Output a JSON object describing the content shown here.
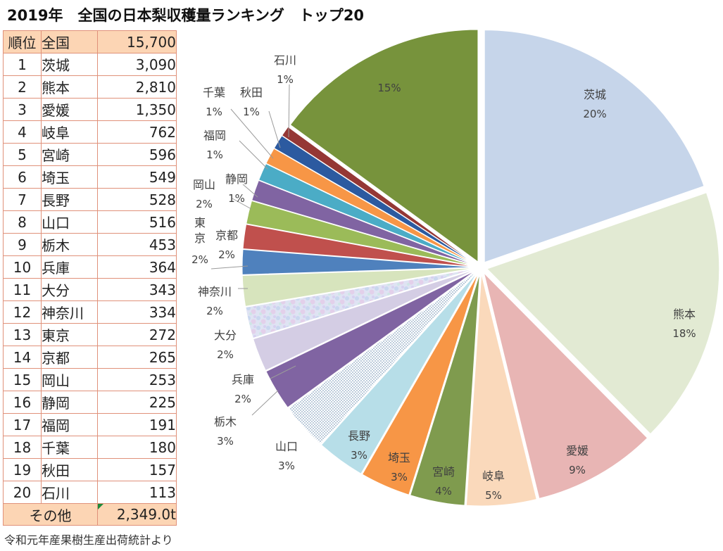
{
  "title": "2019年　全国の日本梨収穫量ランキング　トップ20",
  "source": "令和元年産果樹生産出荷統計より",
  "table": {
    "header": {
      "rank": "順位",
      "name": "全国",
      "value": "15,700"
    },
    "rows": [
      {
        "rank": "1",
        "name": "茨城",
        "value": "3,090"
      },
      {
        "rank": "2",
        "name": "熊本",
        "value": "2,810"
      },
      {
        "rank": "3",
        "name": "愛媛",
        "value": "1,350"
      },
      {
        "rank": "4",
        "name": "岐阜",
        "value": "762"
      },
      {
        "rank": "5",
        "name": "宮崎",
        "value": "596"
      },
      {
        "rank": "6",
        "name": "埼玉",
        "value": "549"
      },
      {
        "rank": "7",
        "name": "長野",
        "value": "528"
      },
      {
        "rank": "8",
        "name": "山口",
        "value": "516"
      },
      {
        "rank": "9",
        "name": "栃木",
        "value": "453"
      },
      {
        "rank": "10",
        "name": "兵庫",
        "value": "364"
      },
      {
        "rank": "11",
        "name": "大分",
        "value": "343"
      },
      {
        "rank": "12",
        "name": "神奈川",
        "value": "334"
      },
      {
        "rank": "13",
        "name": "東京",
        "value": "272"
      },
      {
        "rank": "14",
        "name": "京都",
        "value": "265"
      },
      {
        "rank": "15",
        "name": "岡山",
        "value": "253"
      },
      {
        "rank": "16",
        "name": "静岡",
        "value": "225"
      },
      {
        "rank": "17",
        "name": "福岡",
        "value": "191"
      },
      {
        "rank": "18",
        "name": "千葉",
        "value": "180"
      },
      {
        "rank": "19",
        "name": "秋田",
        "value": "157"
      },
      {
        "rank": "20",
        "name": "石川",
        "value": "113"
      }
    ],
    "other": {
      "label": "その他",
      "value": "2,349.0t"
    }
  },
  "chart_data": {
    "type": "pie",
    "title": "",
    "slices": [
      {
        "name": "茨城",
        "value": 3090,
        "label": "20%",
        "color": "#c6d5ea"
      },
      {
        "name": "熊本",
        "value": 2810,
        "label": "18%",
        "color": "#e2ead3"
      },
      {
        "name": "愛媛",
        "value": 1350,
        "label": "9%",
        "color": "#e8b5b4"
      },
      {
        "name": "岐阜",
        "value": 762,
        "label": "5%",
        "color": "#fad9bb"
      },
      {
        "name": "宮崎",
        "value": 596,
        "label": "4%",
        "color": "#7f9b4e"
      },
      {
        "name": "埼玉",
        "value": 549,
        "label": "3%",
        "color": "#f79646"
      },
      {
        "name": "長野",
        "value": 528,
        "label": "3%",
        "color": "#b7dee8"
      },
      {
        "name": "山口",
        "value": 516,
        "label": "3%",
        "color": "dots"
      },
      {
        "name": "栃木",
        "value": 453,
        "label": "3%",
        "color": "#8064a2"
      },
      {
        "name": "兵庫",
        "value": 364,
        "label": "2%",
        "color": "#d4cde4"
      },
      {
        "name": "大分",
        "value": 343,
        "label": "2%",
        "color": "texture"
      },
      {
        "name": "神奈川",
        "value": 334,
        "label": "2%",
        "color": "#d7e4bd"
      },
      {
        "name": "東京",
        "value": 272,
        "label": "2%",
        "color": "#4f81bd"
      },
      {
        "name": "京都",
        "value": 265,
        "label": "2%",
        "color": "#c0504d"
      },
      {
        "name": "岡山",
        "value": 253,
        "label": "2%",
        "color": "#9bbb59"
      },
      {
        "name": "静岡",
        "value": 225,
        "label": "1%",
        "color": "#8064a2"
      },
      {
        "name": "福岡",
        "value": 191,
        "label": "1%",
        "color": "#4bacc6"
      },
      {
        "name": "千葉",
        "value": 180,
        "label": "1%",
        "color": "#f79646"
      },
      {
        "name": "秋田",
        "value": 157,
        "label": "1%",
        "color": "#2c5aa0"
      },
      {
        "name": "石川",
        "value": 113,
        "label": "1%",
        "color": "#953735"
      },
      {
        "name": "",
        "value": 2349,
        "label": "15%",
        "color": "#77933c"
      }
    ]
  }
}
